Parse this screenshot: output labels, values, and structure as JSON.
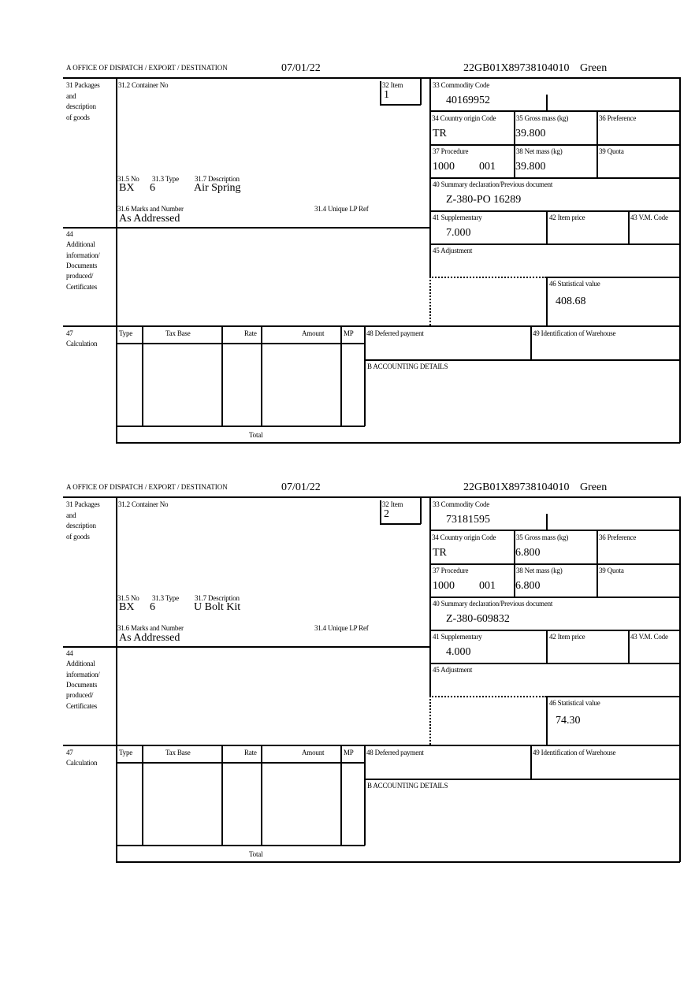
{
  "labels": {
    "office": "A  OFFICE OF DISPATCH / EXPORT / DESTINATION",
    "b31": [
      "31 Packages",
      "and",
      "description",
      "of goods"
    ],
    "b31_2": "31.2 Container No",
    "b32": "32 Item",
    "b33": "33 Commodity Code",
    "b34": "34 Country origin Code",
    "b35": "35 Gross mass (kg)",
    "b36": "36 Preference",
    "b37": "37 Procedure",
    "b38": "38 Net mass (kg)",
    "b39": "39 Quota",
    "b40": "40 Summary declaration/Previous document",
    "b41": "41 Supplementary",
    "b42": "42 Item price",
    "b43": "43 V.M. Code",
    "b45": "45 Adjustment",
    "b46": "46 Statistical value",
    "b31_5": "31.5 No",
    "b31_3": "31.3 Type",
    "b31_7": "31.7 Description",
    "b31_6": "31.6 Marks and Number",
    "b31_4": "31.4 Unique LP Ref",
    "b44": [
      "44",
      "Additional",
      "information/",
      "Documents",
      "produced/",
      "Certificates"
    ],
    "b47": [
      "47",
      "Calculation"
    ],
    "calc_cols": [
      "Type",
      "Tax Base",
      "Rate",
      "Amount",
      "MP"
    ],
    "total": "Total",
    "b48": "48 Deferred payment",
    "b49": "49 Identification of Warehouse",
    "accounting": "B ACCOUNTING DETAILS"
  },
  "forms": [
    {
      "date": "07/01/22",
      "reference": "22GB01X89738104010",
      "route": "Green",
      "item": "1",
      "commodity_code": "40169952",
      "country_origin": "TR",
      "gross_mass": "39.800",
      "procedure": "1000",
      "procedure_add": "001",
      "net_mass": "39.800",
      "previous_document": "Z-380-PO 16289",
      "package_kind": "BX",
      "package_count": "6",
      "description": "Air Spring",
      "marks": "As Addressed",
      "supplementary": "7.000",
      "statistical_value": "408.68"
    },
    {
      "date": "07/01/22",
      "reference": "22GB01X89738104010",
      "route": "Green",
      "item": "2",
      "commodity_code": "73181595",
      "country_origin": "TR",
      "gross_mass": "6.800",
      "procedure": "1000",
      "procedure_add": "001",
      "net_mass": "6.800",
      "previous_document": "Z-380-609832",
      "package_kind": "BX",
      "package_count": "6",
      "description": "U Bolt Kit",
      "marks": "As Addressed",
      "supplementary": "4.000",
      "statistical_value": "74.30"
    }
  ]
}
